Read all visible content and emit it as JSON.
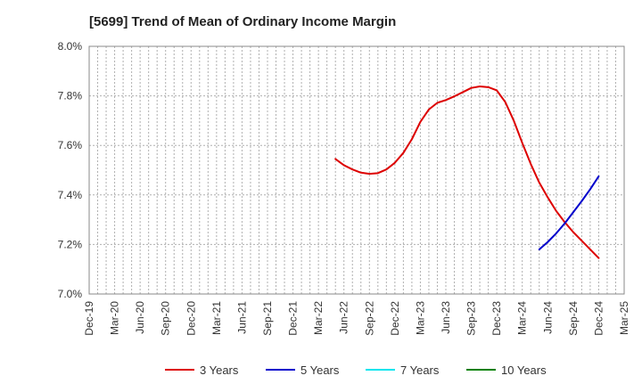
{
  "chart_data": {
    "type": "line",
    "title": "[5699]  Trend of Mean of Ordinary Income Margin",
    "xlabel": "",
    "ylabel": "",
    "ylim": [
      7.0,
      8.0
    ],
    "y_ticks": [
      "7.0%",
      "7.2%",
      "7.4%",
      "7.6%",
      "7.8%",
      "8.0%"
    ],
    "x_ticks": [
      "Dec-19",
      "Mar-20",
      "Jun-20",
      "Sep-20",
      "Dec-20",
      "Mar-21",
      "Jun-21",
      "Sep-21",
      "Dec-21",
      "Mar-22",
      "Jun-22",
      "Sep-22",
      "Dec-22",
      "Mar-23",
      "Jun-23",
      "Sep-23",
      "Dec-23",
      "Mar-24",
      "Jun-24",
      "Sep-24",
      "Dec-24",
      "Mar-25"
    ],
    "grid": true,
    "legend_position": "bottom",
    "series": [
      {
        "name": "3 Years",
        "color": "#dd0000",
        "points": [
          [
            "May-22",
            7.545
          ],
          [
            "Jun-22",
            7.52
          ],
          [
            "Jul-22",
            7.503
          ],
          [
            "Aug-22",
            7.49
          ],
          [
            "Sep-22",
            7.485
          ],
          [
            "Oct-22",
            7.488
          ],
          [
            "Nov-22",
            7.503
          ],
          [
            "Dec-22",
            7.53
          ],
          [
            "Jan-23",
            7.57
          ],
          [
            "Feb-23",
            7.625
          ],
          [
            "Mar-23",
            7.695
          ],
          [
            "Apr-23",
            7.745
          ],
          [
            "May-23",
            7.772
          ],
          [
            "Jun-23",
            7.783
          ],
          [
            "Jul-23",
            7.798
          ],
          [
            "Aug-23",
            7.815
          ],
          [
            "Sep-23",
            7.832
          ],
          [
            "Oct-23",
            7.838
          ],
          [
            "Nov-23",
            7.835
          ],
          [
            "Dec-23",
            7.822
          ],
          [
            "Jan-24",
            7.775
          ],
          [
            "Feb-24",
            7.7
          ],
          [
            "Mar-24",
            7.61
          ],
          [
            "Apr-24",
            7.525
          ],
          [
            "May-24",
            7.45
          ],
          [
            "Jun-24",
            7.39
          ],
          [
            "Jul-24",
            7.335
          ],
          [
            "Aug-24",
            7.29
          ],
          [
            "Sep-24",
            7.25
          ],
          [
            "Oct-24",
            7.215
          ],
          [
            "Nov-24",
            7.18
          ],
          [
            "Dec-24",
            7.145
          ]
        ]
      },
      {
        "name": "5 Years",
        "color": "#0000cc",
        "points": [
          [
            "May-24",
            7.18
          ],
          [
            "Jun-24",
            7.21
          ],
          [
            "Jul-24",
            7.245
          ],
          [
            "Aug-24",
            7.285
          ],
          [
            "Sep-24",
            7.33
          ],
          [
            "Oct-24",
            7.375
          ],
          [
            "Nov-24",
            7.423
          ],
          [
            "Dec-24",
            7.475
          ]
        ]
      },
      {
        "name": "7 Years",
        "color": "#00e5ee",
        "points": []
      },
      {
        "name": "10 Years",
        "color": "#008000",
        "points": []
      }
    ]
  }
}
